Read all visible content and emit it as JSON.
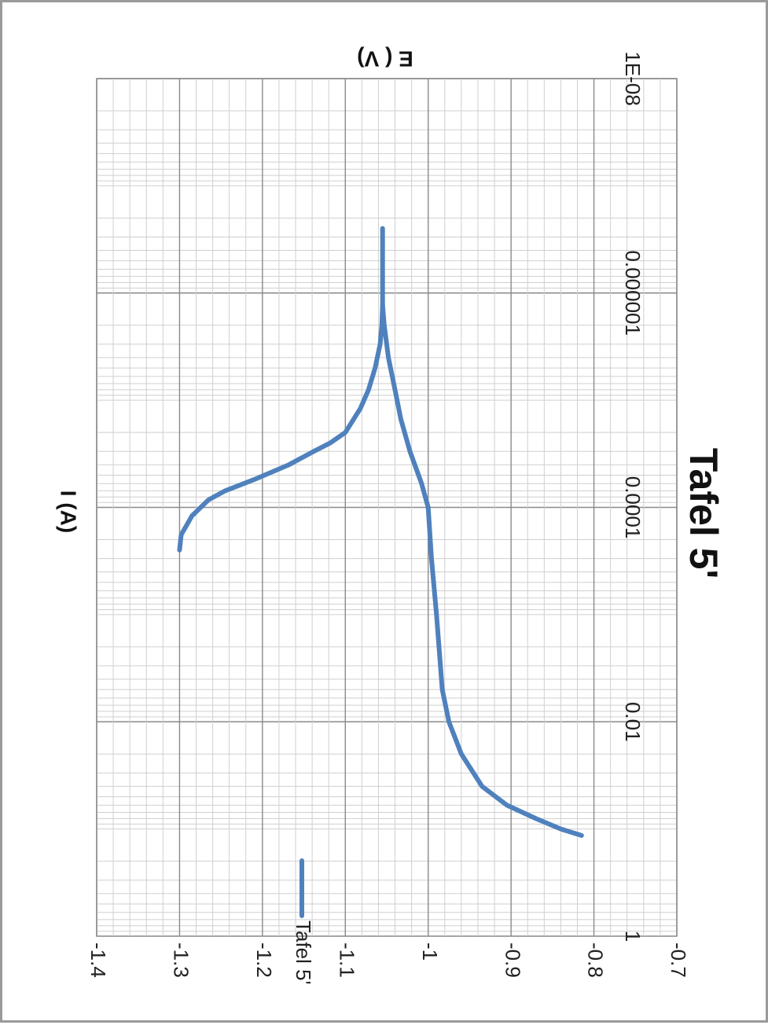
{
  "chart_data": {
    "type": "line",
    "title": "Tafel 5'",
    "xlabel": "I (A)",
    "ylabel": "E ( V)",
    "x_scale": "log",
    "xlim": [
      1e-08,
      1
    ],
    "ylim": [
      -1.4,
      -0.7
    ],
    "x_ticks": [
      "1E-08",
      "0.000001",
      "0.0001",
      "0.01",
      "1"
    ],
    "y_ticks": [
      "-1.4",
      "-1.3",
      "-1.2",
      "-1.1",
      "-1",
      "-0.9",
      "-0.8",
      "-0.7"
    ],
    "grid": true,
    "legend_position": "right",
    "color": "#4f81bd",
    "series": [
      {
        "name": "Tafel 5'",
        "points": [
          [
            2.5e-07,
            -1.055
          ],
          [
            4e-07,
            -1.055
          ],
          [
            6e-07,
            -1.055
          ],
          [
            8e-07,
            -1.055
          ],
          [
            1e-06,
            -1.055
          ],
          [
            1.3e-06,
            -1.055
          ],
          [
            2e-06,
            -1.056
          ],
          [
            3e-06,
            -1.058
          ],
          [
            5e-06,
            -1.064
          ],
          [
            8e-06,
            -1.072
          ],
          [
            1.2e-05,
            -1.082
          ],
          [
            2e-05,
            -1.1
          ],
          [
            2.5e-05,
            -1.118
          ],
          [
            3e-05,
            -1.138
          ],
          [
            4e-05,
            -1.168
          ],
          [
            5.5e-05,
            -1.21
          ],
          [
            7e-05,
            -1.245
          ],
          [
            8.5e-05,
            -1.265
          ],
          [
            0.00012,
            -1.285
          ],
          [
            0.00018,
            -1.298
          ],
          [
            0.00025,
            -1.3
          ]
        ]
      },
      {
        "name": "Tafel 5'",
        "points": [
          [
            1.3e-06,
            -1.055
          ],
          [
            2e-06,
            -1.053
          ],
          [
            4e-06,
            -1.048
          ],
          [
            8e-06,
            -1.04
          ],
          [
            1.5e-05,
            -1.033
          ],
          [
            3e-05,
            -1.022
          ],
          [
            6e-05,
            -1.008
          ],
          [
            0.0001,
            -1.0
          ],
          [
            0.0003,
            -0.996
          ],
          [
            0.001,
            -0.99
          ],
          [
            0.005,
            -0.983
          ],
          [
            0.01,
            -0.975
          ],
          [
            0.02,
            -0.96
          ],
          [
            0.04,
            -0.935
          ],
          [
            0.06,
            -0.905
          ],
          [
            0.08,
            -0.87
          ],
          [
            0.1,
            -0.84
          ],
          [
            0.115,
            -0.815
          ]
        ]
      }
    ]
  }
}
